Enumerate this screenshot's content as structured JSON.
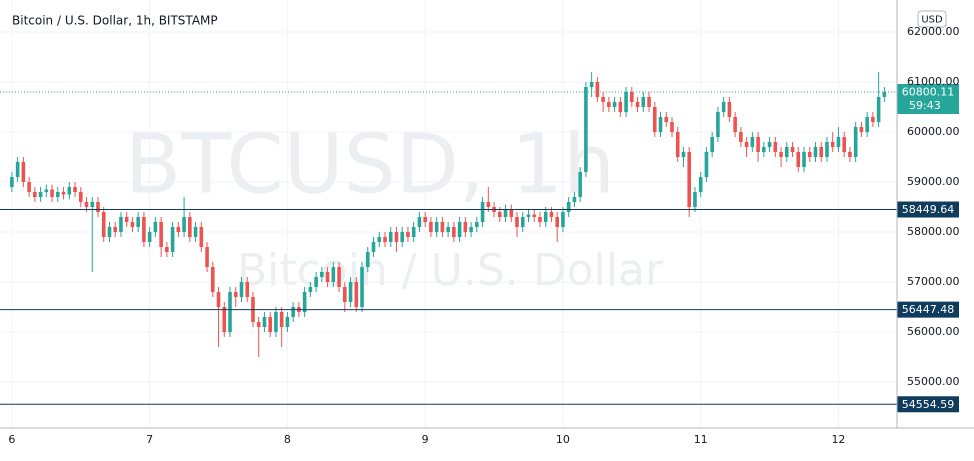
{
  "chart_data": {
    "type": "candlestick",
    "title": "Bitcoin / U.S. Dollar, 1h, BITSTAMP",
    "currency": "USD",
    "watermark": [
      "BTCUSD, 1h",
      "Bitcoin / U.S. Dollar"
    ],
    "countdown": "59:43",
    "up_color": "#26a69a",
    "down_color": "#ef5350",
    "line_color": "#0f3c5c",
    "grid": true,
    "ylim": [
      54080,
      62640
    ],
    "yticks": [
      {
        "value": 55000,
        "label": "55000.00"
      },
      {
        "value": 56000,
        "label": "56000.00"
      },
      {
        "value": 57000,
        "label": "57000.00"
      },
      {
        "value": 58000,
        "label": "58000.00"
      },
      {
        "value": 59000,
        "label": "59000.00"
      },
      {
        "value": 60000,
        "label": "60000.00"
      },
      {
        "value": 61000,
        "label": "61000.00"
      },
      {
        "value": 62000,
        "label": "62000.00"
      }
    ],
    "xlim": [
      -1.2,
      154.2
    ],
    "xticks": [
      {
        "value": 0,
        "label": "6"
      },
      {
        "value": 24,
        "label": "7"
      },
      {
        "value": 48,
        "label": "8"
      },
      {
        "value": 72,
        "label": "9"
      },
      {
        "value": 96,
        "label": "10"
      },
      {
        "value": 120,
        "label": "11"
      },
      {
        "value": 144,
        "label": "12"
      }
    ],
    "price_lines": [
      58449.64,
      56447.48,
      54554.59
    ],
    "candles": [
      [
        58900,
        59200,
        58800,
        59100
      ],
      [
        59100,
        59500,
        59000,
        59400
      ],
      [
        59400,
        59500,
        58900,
        59000
      ],
      [
        59000,
        59100,
        58700,
        58800
      ],
      [
        58800,
        58900,
        58600,
        58700
      ],
      [
        58700,
        58900,
        58600,
        58800
      ],
      [
        58800,
        58950,
        58700,
        58850
      ],
      [
        58850,
        58950,
        58600,
        58700
      ],
      [
        58700,
        58900,
        58600,
        58800
      ],
      [
        58800,
        58900,
        58650,
        58750
      ],
      [
        58750,
        59000,
        58650,
        58900
      ],
      [
        58900,
        59000,
        58700,
        58800
      ],
      [
        58800,
        58900,
        58500,
        58600
      ],
      [
        58600,
        58700,
        58400,
        58500
      ],
      [
        58500,
        58700,
        57200,
        58600
      ],
      [
        58600,
        58700,
        58300,
        58400
      ],
      [
        58400,
        58500,
        57800,
        57900
      ],
      [
        57900,
        58200,
        57800,
        58100
      ],
      [
        58100,
        58200,
        57900,
        58000
      ],
      [
        58000,
        58400,
        57900,
        58300
      ],
      [
        58300,
        58400,
        58100,
        58200
      ],
      [
        58200,
        58300,
        58000,
        58100
      ],
      [
        58100,
        58400,
        58000,
        58300
      ],
      [
        58300,
        58400,
        57700,
        57800
      ],
      [
        57800,
        58100,
        57700,
        58000
      ],
      [
        58000,
        58300,
        57900,
        58200
      ],
      [
        58200,
        58300,
        57500,
        57700
      ],
      [
        57700,
        57800,
        57500,
        57600
      ],
      [
        57600,
        58200,
        57500,
        58100
      ],
      [
        58100,
        58200,
        57900,
        58000
      ],
      [
        58000,
        58700,
        57900,
        58300
      ],
      [
        58300,
        58400,
        57800,
        57900
      ],
      [
        57900,
        58200,
        57800,
        58100
      ],
      [
        58100,
        58200,
        57600,
        57700
      ],
      [
        57700,
        57800,
        57200,
        57300
      ],
      [
        57300,
        57400,
        56700,
        56800
      ],
      [
        56800,
        56900,
        55700,
        56500
      ],
      [
        56500,
        56600,
        55900,
        56000
      ],
      [
        56000,
        56900,
        55900,
        56800
      ],
      [
        56800,
        56900,
        56500,
        56700
      ],
      [
        56700,
        57100,
        56600,
        57000
      ],
      [
        57000,
        57100,
        56600,
        56700
      ],
      [
        56700,
        56800,
        56100,
        56200
      ],
      [
        56200,
        56300,
        55500,
        56100
      ],
      [
        56100,
        56400,
        56000,
        56300
      ],
      [
        56300,
        56400,
        55900,
        56000
      ],
      [
        56000,
        56500,
        55900,
        56400
      ],
      [
        56400,
        56500,
        55700,
        56100
      ],
      [
        56100,
        56400,
        56000,
        56300
      ],
      [
        56300,
        56600,
        56200,
        56500
      ],
      [
        56500,
        56600,
        56300,
        56400
      ],
      [
        56400,
        56900,
        56300,
        56800
      ],
      [
        56800,
        57000,
        56700,
        56900
      ],
      [
        56900,
        57200,
        56800,
        57100
      ],
      [
        57100,
        57300,
        57000,
        57200
      ],
      [
        57200,
        57300,
        56900,
        57000
      ],
      [
        57000,
        57400,
        56900,
        57300
      ],
      [
        57300,
        57400,
        56800,
        56900
      ],
      [
        56900,
        57000,
        56400,
        56600
      ],
      [
        56600,
        57100,
        56500,
        57000
      ],
      [
        57000,
        57100,
        56400,
        56500
      ],
      [
        56500,
        57400,
        56400,
        57300
      ],
      [
        57300,
        57700,
        57200,
        57600
      ],
      [
        57600,
        57900,
        57500,
        57800
      ],
      [
        57800,
        58000,
        57700,
        57900
      ],
      [
        57900,
        58000,
        57700,
        57800
      ],
      [
        57800,
        58100,
        57700,
        58000
      ],
      [
        58000,
        58100,
        57600,
        57800
      ],
      [
        57800,
        58100,
        57700,
        58000
      ],
      [
        58000,
        58100,
        57800,
        57900
      ],
      [
        57900,
        58200,
        57800,
        58100
      ],
      [
        58100,
        58400,
        58000,
        58300
      ],
      [
        58300,
        58400,
        58100,
        58200
      ],
      [
        58200,
        58300,
        57900,
        58000
      ],
      [
        58000,
        58300,
        57900,
        58200
      ],
      [
        58200,
        58300,
        57900,
        58000
      ],
      [
        58000,
        58200,
        57900,
        58100
      ],
      [
        58100,
        58200,
        57800,
        57900
      ],
      [
        57900,
        58300,
        57800,
        58200
      ],
      [
        58200,
        58300,
        57900,
        58000
      ],
      [
        58000,
        58200,
        57900,
        58100
      ],
      [
        58100,
        58300,
        58000,
        58200
      ],
      [
        58200,
        58700,
        58100,
        58600
      ],
      [
        58600,
        58900,
        58400,
        58500
      ],
      [
        58500,
        58600,
        58300,
        58400
      ],
      [
        58400,
        58500,
        58200,
        58300
      ],
      [
        58300,
        58550,
        58200,
        58450
      ],
      [
        58450,
        58550,
        58200,
        58300
      ],
      [
        58300,
        58400,
        57900,
        58100
      ],
      [
        58100,
        58400,
        58000,
        58300
      ],
      [
        58300,
        58450,
        58200,
        58350
      ],
      [
        58350,
        58450,
        58200,
        58300
      ],
      [
        58300,
        58400,
        58100,
        58200
      ],
      [
        58200,
        58500,
        58100,
        58400
      ],
      [
        58400,
        58500,
        58200,
        58300
      ],
      [
        58300,
        58400,
        57800,
        58100
      ],
      [
        58100,
        58500,
        58000,
        58400
      ],
      [
        58400,
        58700,
        58300,
        58600
      ],
      [
        58600,
        58800,
        58500,
        58700
      ],
      [
        58700,
        59300,
        58600,
        59200
      ],
      [
        59200,
        61000,
        59100,
        60900
      ],
      [
        60900,
        61200,
        60700,
        61000
      ],
      [
        61000,
        61100,
        60600,
        60700
      ],
      [
        60700,
        60800,
        60400,
        60600
      ],
      [
        60600,
        60700,
        60400,
        60500
      ],
      [
        60500,
        60700,
        60400,
        60600
      ],
      [
        60600,
        60700,
        60300,
        60400
      ],
      [
        60400,
        60900,
        60300,
        60800
      ],
      [
        60800,
        60900,
        60500,
        60600
      ],
      [
        60600,
        60700,
        60400,
        60500
      ],
      [
        60500,
        60800,
        60400,
        60700
      ],
      [
        60700,
        60800,
        60400,
        60500
      ],
      [
        60500,
        60600,
        59900,
        60000
      ],
      [
        60000,
        60400,
        59900,
        60300
      ],
      [
        60300,
        60400,
        60100,
        60200
      ],
      [
        60200,
        60300,
        59900,
        60000
      ],
      [
        60000,
        60100,
        59400,
        59500
      ],
      [
        59500,
        59700,
        59300,
        59600
      ],
      [
        59600,
        59700,
        58300,
        58500
      ],
      [
        58500,
        58900,
        58400,
        58800
      ],
      [
        58800,
        59200,
        58700,
        59100
      ],
      [
        59100,
        59700,
        59000,
        59600
      ],
      [
        59600,
        60000,
        59500,
        59900
      ],
      [
        59900,
        60500,
        59800,
        60400
      ],
      [
        60400,
        60700,
        60300,
        60600
      ],
      [
        60600,
        60700,
        60200,
        60300
      ],
      [
        60300,
        60400,
        59900,
        60000
      ],
      [
        60000,
        60100,
        59700,
        59800
      ],
      [
        59800,
        59900,
        59500,
        59700
      ],
      [
        59700,
        60000,
        59600,
        59900
      ],
      [
        59900,
        60000,
        59400,
        59600
      ],
      [
        59600,
        59800,
        59500,
        59700
      ],
      [
        59700,
        59900,
        59600,
        59800
      ],
      [
        59800,
        59900,
        59500,
        59600
      ],
      [
        59600,
        59700,
        59300,
        59500
      ],
      [
        59500,
        59800,
        59400,
        59700
      ],
      [
        59700,
        59800,
        59500,
        59600
      ],
      [
        59600,
        59700,
        59200,
        59300
      ],
      [
        59300,
        59700,
        59200,
        59600
      ],
      [
        59600,
        59700,
        59400,
        59500
      ],
      [
        59500,
        59800,
        59400,
        59700
      ],
      [
        59700,
        59800,
        59400,
        59500
      ],
      [
        59500,
        59900,
        59400,
        59800
      ],
      [
        59800,
        60000,
        59600,
        59700
      ],
      [
        59700,
        60100,
        59600,
        59900
      ],
      [
        59900,
        60000,
        59500,
        59600
      ],
      [
        59600,
        59700,
        59400,
        59500
      ],
      [
        59500,
        60200,
        59400,
        60100
      ],
      [
        60100,
        60200,
        59900,
        60000
      ],
      [
        60000,
        60400,
        59900,
        60300
      ],
      [
        60300,
        60400,
        60100,
        60200
      ],
      [
        60200,
        61200,
        60100,
        60700
      ],
      [
        60700,
        60900,
        60600,
        60800.11
      ]
    ]
  }
}
